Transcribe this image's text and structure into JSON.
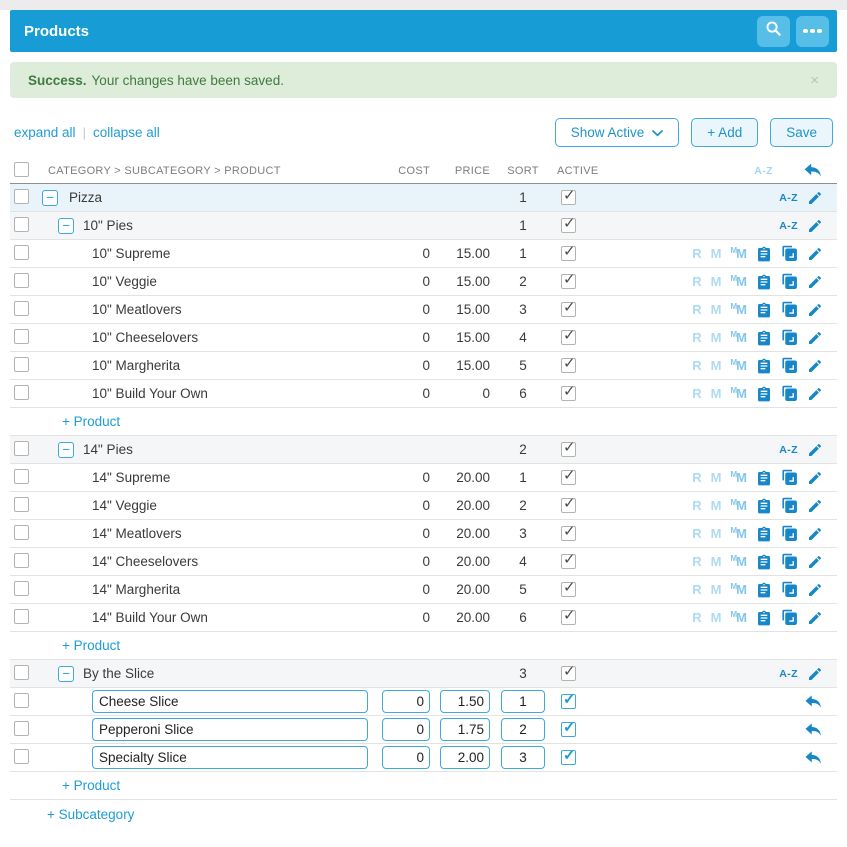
{
  "header": {
    "title": "Products"
  },
  "alert": {
    "title": "Success.",
    "message": "Your changes have been saved.",
    "close_label": "×"
  },
  "toolbar": {
    "expand_all_label": "expand all",
    "separator": "|",
    "collapse_all_label": "collapse all",
    "filter_button_label": "Show Active",
    "add_button_label": "+ Add",
    "save_button_label": "Save"
  },
  "table": {
    "headers": {
      "name": "CATEGORY > SUBCATEGORY > PRODUCT",
      "cost": "COST",
      "price": "PRICE",
      "sort": "SORT",
      "active": "ACTIVE",
      "az": "A-Z"
    },
    "az_label": "A-Z",
    "add_product_label": "+ Product",
    "add_subcategory_label": "+ Subcategory",
    "product_icons": [
      {
        "name": "recipe-icon",
        "glyph": "R",
        "tone": "faint"
      },
      {
        "name": "modifiers-icon",
        "glyph": "M",
        "tone": "faint"
      },
      {
        "name": "price-modifier-icon",
        "glyph": "M",
        "sup": "M",
        "tone": "medium"
      }
    ],
    "rows": [
      {
        "type": "category",
        "name": "Pizza",
        "sort": "1",
        "active": true
      },
      {
        "type": "subcategory",
        "name": "10\" Pies",
        "sort": "1",
        "active": true
      },
      {
        "type": "product",
        "name": "10\" Supreme",
        "cost": "0",
        "price": "15.00",
        "sort": "1",
        "active": true
      },
      {
        "type": "product",
        "name": "10\" Veggie",
        "cost": "0",
        "price": "15.00",
        "sort": "2",
        "active": true
      },
      {
        "type": "product",
        "name": "10\" Meatlovers",
        "cost": "0",
        "price": "15.00",
        "sort": "3",
        "active": true
      },
      {
        "type": "product",
        "name": "10\" Cheeselovers",
        "cost": "0",
        "price": "15.00",
        "sort": "4",
        "active": true
      },
      {
        "type": "product",
        "name": "10\" Margherita",
        "cost": "0",
        "price": "15.00",
        "sort": "5",
        "active": true
      },
      {
        "type": "product",
        "name": "10\" Build Your Own",
        "cost": "0",
        "price": "0",
        "sort": "6",
        "active": true
      },
      {
        "type": "add-product"
      },
      {
        "type": "subcategory",
        "name": "14\" Pies",
        "sort": "2",
        "active": true
      },
      {
        "type": "product",
        "name": "14\" Supreme",
        "cost": "0",
        "price": "20.00",
        "sort": "1",
        "active": true
      },
      {
        "type": "product",
        "name": "14\" Veggie",
        "cost": "0",
        "price": "20.00",
        "sort": "2",
        "active": true
      },
      {
        "type": "product",
        "name": "14\" Meatlovers",
        "cost": "0",
        "price": "20.00",
        "sort": "3",
        "active": true
      },
      {
        "type": "product",
        "name": "14\" Cheeselovers",
        "cost": "0",
        "price": "20.00",
        "sort": "4",
        "active": true
      },
      {
        "type": "product",
        "name": "14\" Margherita",
        "cost": "0",
        "price": "20.00",
        "sort": "5",
        "active": true
      },
      {
        "type": "product",
        "name": "14\" Build Your Own",
        "cost": "0",
        "price": "20.00",
        "sort": "6",
        "active": true
      },
      {
        "type": "add-product"
      },
      {
        "type": "subcategory",
        "name": "By the Slice",
        "sort": "3",
        "active": true
      },
      {
        "type": "product-edit",
        "name": "Cheese Slice",
        "cost": "0",
        "price": "1.50",
        "sort": "1",
        "active": true
      },
      {
        "type": "product-edit",
        "name": "Pepperoni Slice",
        "cost": "0",
        "price": "1.75",
        "sort": "2",
        "active": true
      },
      {
        "type": "product-edit",
        "name": "Specialty Slice",
        "cost": "0",
        "price": "2.00",
        "sort": "3",
        "active": true
      },
      {
        "type": "add-product"
      },
      {
        "type": "add-subcategory"
      }
    ]
  },
  "colors": {
    "header_bar": "#189CD6",
    "header_button": "#56BEE7",
    "accent_blue": "#1E9CD7",
    "icon_blue": "#1787C8",
    "icon_faint": "#AEDAF2",
    "icon_medium": "#85C7EA",
    "success_bg": "#DEEDD9",
    "success_text": "#3F7A40",
    "category_row_bg": "#E9F3FA",
    "subcategory_row_bg": "#F4F6F7",
    "input_border": "#3FA9DC"
  }
}
